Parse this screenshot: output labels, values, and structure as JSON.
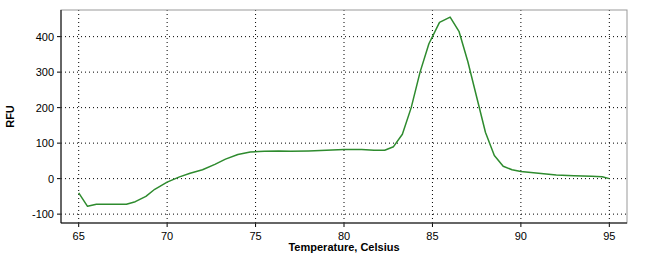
{
  "chart_data": {
    "type": "line",
    "x_label": "Temperature, Celsius",
    "y_label": "RFU",
    "x": [
      65.0,
      65.5,
      66.0,
      67.0,
      67.7,
      68.2,
      68.8,
      69.3,
      70.0,
      70.7,
      71.3,
      72.0,
      72.7,
      73.3,
      74.0,
      74.7,
      75.5,
      76.3,
      77.0,
      78.0,
      79.0,
      80.0,
      81.0,
      81.7,
      82.3,
      82.8,
      83.3,
      83.8,
      84.3,
      84.8,
      85.4,
      86.0,
      86.5,
      87.0,
      87.5,
      88.0,
      88.5,
      89.0,
      89.5,
      90.0,
      91.0,
      92.0,
      93.0,
      94.0,
      94.6,
      95.0
    ],
    "series": [
      {
        "name": "RFU",
        "color": "#2e8b2e",
        "values": [
          -40,
          -78,
          -72,
          -72,
          -72,
          -65,
          -50,
          -30,
          -10,
          5,
          15,
          25,
          40,
          55,
          68,
          75,
          77,
          78,
          77,
          78,
          80,
          82,
          82,
          80,
          80,
          90,
          125,
          200,
          300,
          380,
          440,
          455,
          415,
          330,
          230,
          130,
          65,
          35,
          25,
          20,
          15,
          10,
          8,
          7,
          5,
          0
        ]
      }
    ],
    "xlim": [
      64,
      96
    ],
    "ylim": [
      -125,
      475
    ],
    "xticks": [
      65,
      70,
      75,
      80,
      85,
      90,
      95
    ],
    "yticks": [
      -100,
      0,
      100,
      200,
      300,
      400
    ],
    "grid": true
  }
}
